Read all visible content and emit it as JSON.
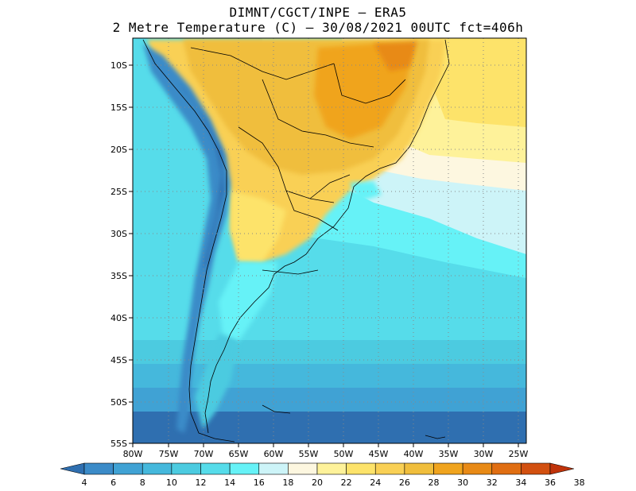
{
  "title": {
    "line1": "DIMNT/CGCT/INPE –  ERA5",
    "line2": "2 Metre Temperature (C) –  30/08/2021 00UTC fct=406h"
  },
  "map": {
    "lat_labels": [
      "10S",
      "15S",
      "20S",
      "25S",
      "30S",
      "35S",
      "40S",
      "45S",
      "50S",
      "55S"
    ],
    "lon_labels": [
      "80W",
      "75W",
      "70W",
      "65W",
      "60W",
      "55W",
      "50W",
      "45W",
      "40W",
      "35W",
      "30W",
      "25W"
    ]
  },
  "colorbar": {
    "labels": [
      "4",
      "6",
      "8",
      "10",
      "12",
      "14",
      "16",
      "18",
      "20",
      "22",
      "24",
      "26",
      "28",
      "30",
      "32",
      "34",
      "36",
      "38"
    ],
    "colors": [
      "#2f6fb0",
      "#3b8bc8",
      "#40a2d4",
      "#45b8dc",
      "#4ccbe0",
      "#56dcea",
      "#66f2f7",
      "#cdf4f8",
      "#fdf7e0",
      "#fef29a",
      "#fde36a",
      "#f9d055",
      "#f0be3c",
      "#f0a41e",
      "#e88a16",
      "#e06e12",
      "#d25010",
      "#c0330a"
    ]
  }
}
